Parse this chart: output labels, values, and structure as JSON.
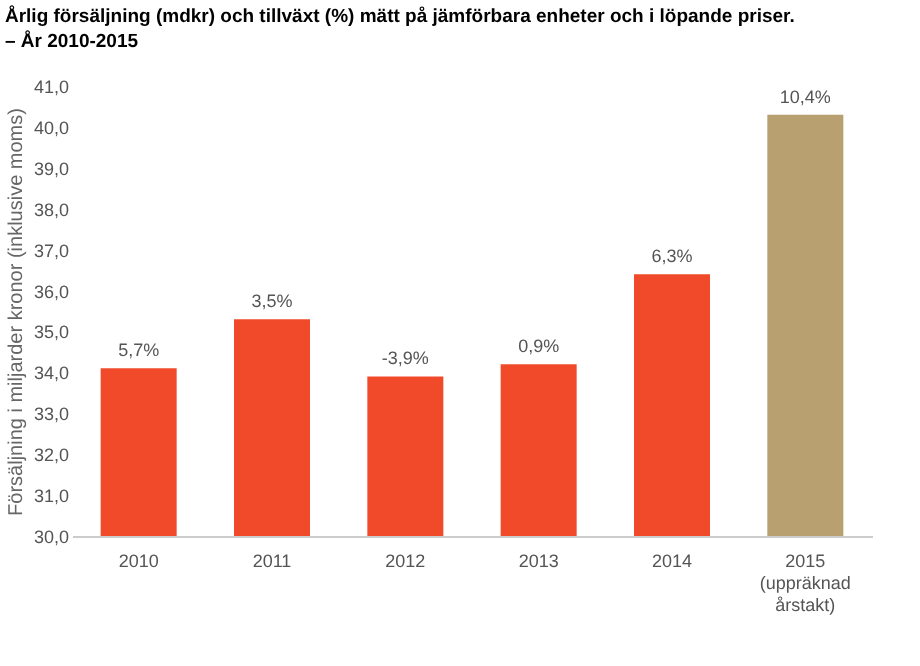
{
  "chart_data": {
    "type": "bar",
    "title": "Årlig försäljning (mdkr) och tillväxt (%) mätt på jämförbara enheter och i löpande priser.",
    "subtitle": "– År 2010-2015",
    "ylabel": "Försäljning i miljarder kronor (inklusive moms)",
    "categories": [
      "2010",
      "2011",
      "2012",
      "2013",
      "2014",
      "2015\n(uppräknad\nårstakt)"
    ],
    "values": [
      34.1,
      35.3,
      33.9,
      34.2,
      36.4,
      40.3
    ],
    "colors": [
      "#f04a2a",
      "#f04a2a",
      "#f04a2a",
      "#f04a2a",
      "#f04a2a",
      "#b9a070"
    ],
    "annotations": [
      {
        "text": "5,7%",
        "x": "2010",
        "y": 34.1
      },
      {
        "text": "3,5%",
        "x": "2011",
        "y": 35.3
      },
      {
        "text": "-3,9%",
        "x": "2012",
        "y": 33.9
      },
      {
        "text": "0,9%",
        "x": "2013",
        "y": 34.2
      },
      {
        "text": "6,3%",
        "x": "2014",
        "y": 36.4
      },
      {
        "text": "10,4%",
        "x": "2015\n(uppräknad\nårstakt)",
        "y": 40.3
      }
    ],
    "ylim": [
      30,
      41
    ],
    "yticks": [
      {
        "value": 30,
        "label": "30,0"
      },
      {
        "value": 31,
        "label": "31,0"
      },
      {
        "value": 32,
        "label": "32,0"
      },
      {
        "value": 33,
        "label": "33,0"
      },
      {
        "value": 34,
        "label": "34,0"
      },
      {
        "value": 35,
        "label": "35,0"
      },
      {
        "value": 36,
        "label": "36,0"
      },
      {
        "value": 37,
        "label": "37,0"
      },
      {
        "value": 38,
        "label": "38,0"
      },
      {
        "value": 39,
        "label": "39,0"
      },
      {
        "value": 40,
        "label": "40,0"
      },
      {
        "value": 41,
        "label": "41,0"
      }
    ],
    "grid": false
  }
}
